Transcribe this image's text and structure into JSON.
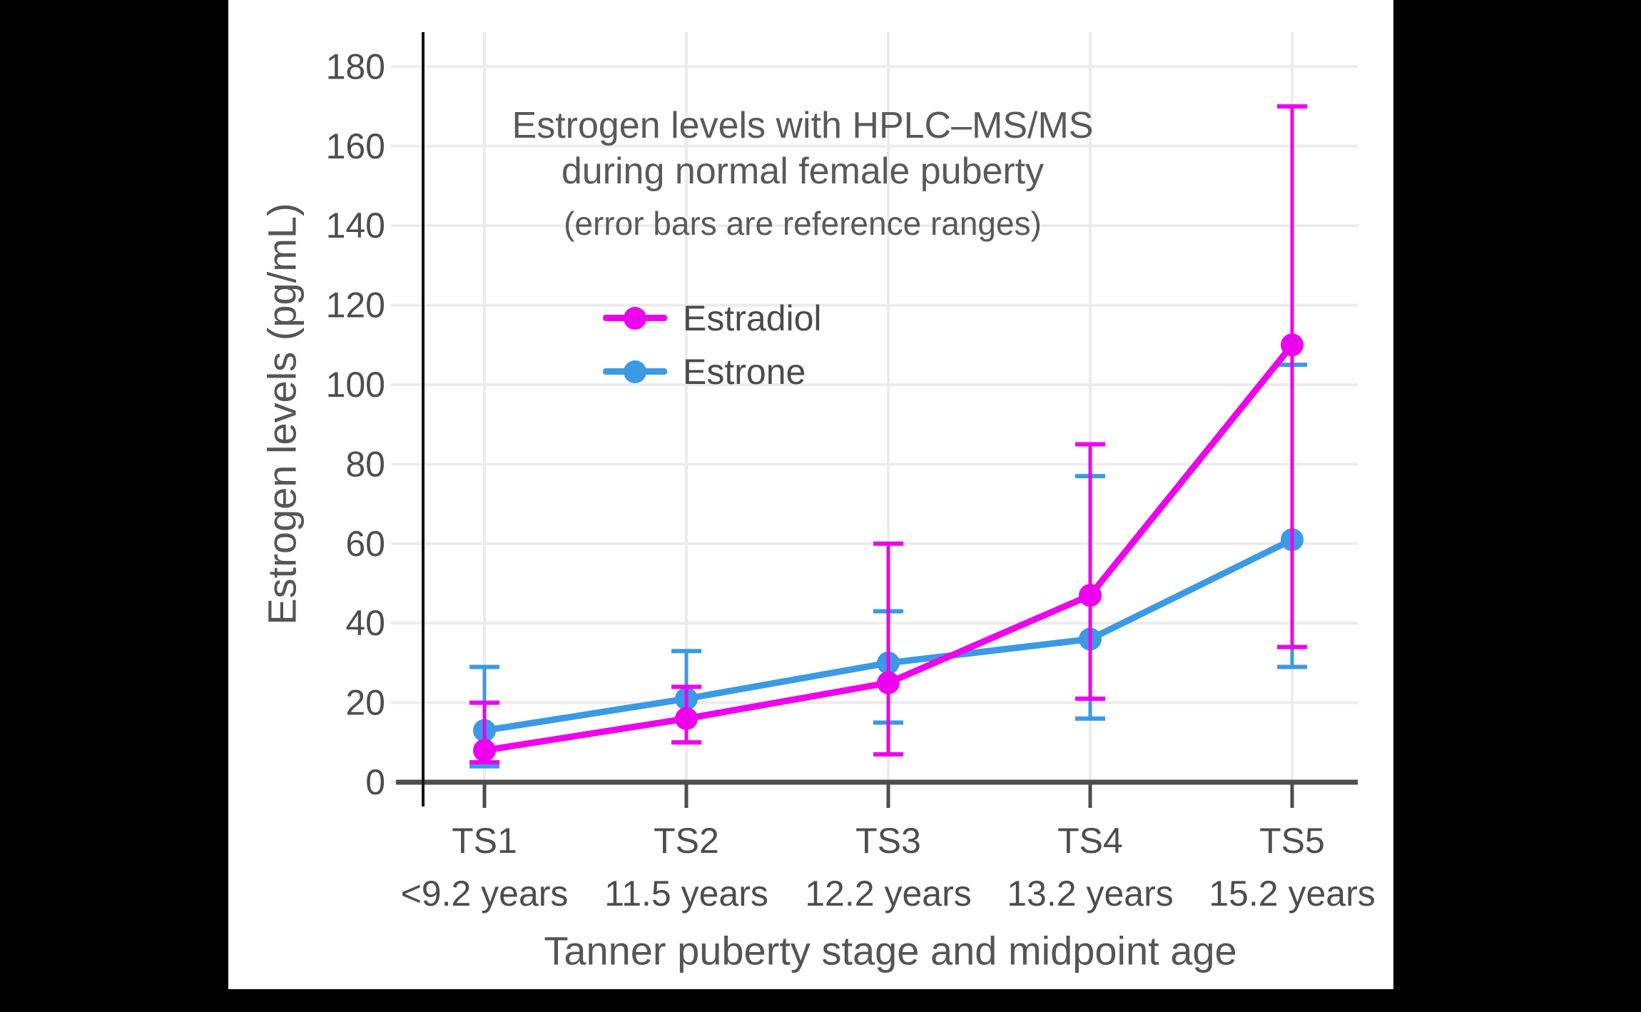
{
  "page": {
    "background_color": "#000000",
    "card_background_color": "#ffffff"
  },
  "title": {
    "line1": "Estrogen levels with HPLC–MS/MS",
    "line2": "during normal female puberty",
    "subtitle": "(error bars are reference ranges)"
  },
  "axes": {
    "y_label": "Estrogen levels (pg/mL)",
    "x_label": "Tanner puberty stage and midpoint age",
    "y_tick_values": [
      0,
      20,
      40,
      60,
      80,
      100,
      120,
      140,
      160,
      180
    ],
    "x_tick_labels": [
      "TS1",
      "TS2",
      "TS3",
      "TS4",
      "TS5"
    ],
    "x_tick_sublabels": [
      "<9.2 years",
      "11.5 years",
      "12.2 years",
      "13.2 years",
      "15.2 years"
    ]
  },
  "legend": {
    "items": [
      {
        "label": "Estradiol",
        "color": "#ee00ee"
      },
      {
        "label": "Estrone",
        "color": "#3b99e6"
      }
    ]
  },
  "colors": {
    "estradiol": "#ee00ee",
    "estrone": "#3b99e6",
    "gridline": "#ececec",
    "axis_line_x": "#4d4d4d",
    "axis_line_y": "#111111",
    "tick_label": "#4d4d4d",
    "title_text": "#595959"
  },
  "chart_data": {
    "type": "line",
    "title": "Estrogen levels with HPLC–MS/MS during normal female puberty",
    "subtitle": "(error bars are reference ranges)",
    "xlabel": "Tanner puberty stage and midpoint age",
    "ylabel": "Estrogen levels (pg/mL)",
    "categories": [
      "TS1",
      "TS2",
      "TS3",
      "TS4",
      "TS5"
    ],
    "category_sublabels": [
      "<9.2 years",
      "11.5 years",
      "12.2 years",
      "13.2 years",
      "15.2 years"
    ],
    "ylim": [
      0,
      188
    ],
    "y_tick_step": 20,
    "grid": true,
    "legend_position": "inside-upper-left",
    "error_bar_meaning": "reference ranges",
    "series": [
      {
        "name": "Estradiol",
        "color": "#ee00ee",
        "values": [
          8,
          16,
          25,
          47,
          110
        ],
        "error_low": [
          5,
          10,
          7,
          21,
          34
        ],
        "error_high": [
          20,
          24,
          60,
          85,
          170
        ]
      },
      {
        "name": "Estrone",
        "color": "#3b99e6",
        "values": [
          13,
          21,
          30,
          36,
          61
        ],
        "error_low": [
          4,
          10,
          15,
          16,
          29
        ],
        "error_high": [
          29,
          33,
          43,
          77,
          105
        ]
      }
    ]
  }
}
